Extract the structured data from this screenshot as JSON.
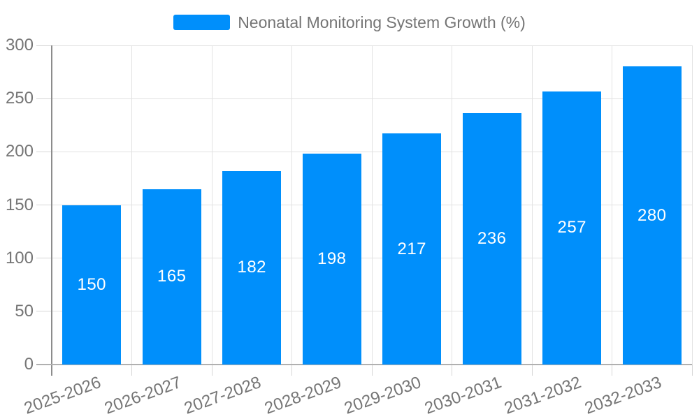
{
  "chart_data": {
    "type": "bar",
    "title": "Neonatal Monitoring System Growth (%)",
    "categories": [
      "2025-2026",
      "2026-2027",
      "2027-2028",
      "2028-2029",
      "2029-2030",
      "2030-2031",
      "2031-2032",
      "2032-2033"
    ],
    "values": [
      150,
      165,
      182,
      198,
      217,
      236,
      257,
      280
    ],
    "xlabel": "",
    "ylabel": "",
    "ylim": [
      0,
      300
    ],
    "yticks": [
      0,
      50,
      100,
      150,
      200,
      250,
      300
    ],
    "grid": true,
    "legend_position": "top-center",
    "bar_label_position": "inside-center"
  },
  "legend": {
    "label": "Neonatal Monitoring System Growth (%)"
  },
  "colors": {
    "bar": "#008FFB",
    "bar_value_label": "#FFFFFF",
    "grid": "#E2E2E2",
    "tick": "#D6D6D6",
    "axis_y": "#8C8C8C",
    "axis_x": "#B0B0B0",
    "axis_label": "#757575",
    "legend_text": "#757575",
    "background": "#FFFFFF"
  }
}
